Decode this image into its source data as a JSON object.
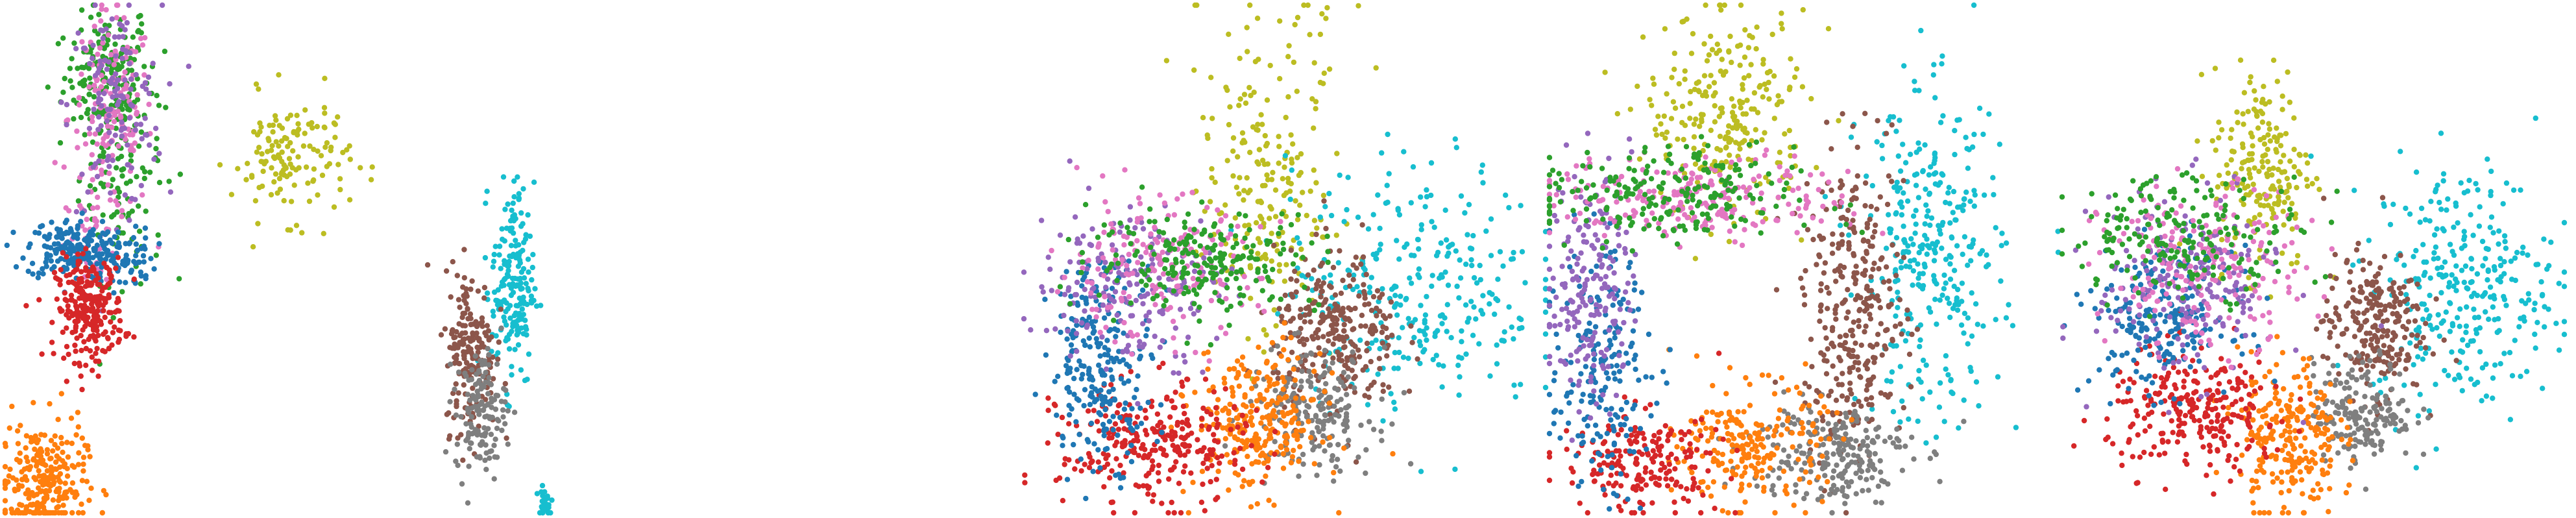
{
  "chart_data": [
    {
      "type": "scatter",
      "panel": 1,
      "title": "",
      "xlabel": "",
      "ylabel": "",
      "grid": false,
      "axes_visible": false,
      "legend": "none",
      "series": [
        {
          "color": "#2ca02c",
          "clusters": [
            {
              "cx": 0.48,
              "cy": 0.86,
              "sx": 0.1,
              "sy": 0.06,
              "n": 160
            },
            {
              "cx": 0.55,
              "cy": 0.7,
              "sx": 0.1,
              "sy": 0.12,
              "n": 140
            }
          ]
        },
        {
          "color": "#e377c2",
          "clusters": [
            {
              "cx": 0.5,
              "cy": 0.78,
              "sx": 0.1,
              "sy": 0.1,
              "n": 150
            },
            {
              "cx": 0.43,
              "cy": 0.55,
              "sx": 0.05,
              "sy": 0.05,
              "n": 40
            }
          ]
        },
        {
          "color": "#9467bd",
          "clusters": [
            {
              "cx": 0.52,
              "cy": 0.8,
              "sx": 0.11,
              "sy": 0.1,
              "n": 130
            }
          ]
        },
        {
          "color": "#1f77b4",
          "clusters": [
            {
              "cx": 0.3,
              "cy": 0.52,
              "sx": 0.1,
              "sy": 0.03,
              "n": 170
            },
            {
              "cx": 0.55,
              "cy": 0.5,
              "sx": 0.08,
              "sy": 0.03,
              "n": 80
            }
          ]
        },
        {
          "color": "#d62728",
          "clusters": [
            {
              "cx": 0.4,
              "cy": 0.4,
              "sx": 0.08,
              "sy": 0.05,
              "n": 260
            }
          ]
        },
        {
          "color": "#bcbd22",
          "clusters": [
            {
              "cx": 1.35,
              "cy": 0.7,
              "sx": 0.14,
              "sy": 0.06,
              "n": 140
            }
          ]
        },
        {
          "color": "#ff7f0e",
          "clusters": [
            {
              "cx": 0.18,
              "cy": 0.06,
              "sx": 0.1,
              "sy": 0.06,
              "n": 260
            }
          ]
        },
        {
          "color": "#17becf",
          "clusters": [
            {
              "cx": 2.4,
              "cy": 0.45,
              "sx": 0.05,
              "sy": 0.1,
              "n": 190
            },
            {
              "cx": 2.55,
              "cy": 0.02,
              "sx": 0.02,
              "sy": 0.02,
              "n": 25
            }
          ]
        },
        {
          "color": "#8c564b",
          "clusters": [
            {
              "cx": 2.2,
              "cy": 0.32,
              "sx": 0.06,
              "sy": 0.08,
              "n": 180
            }
          ]
        },
        {
          "color": "#7f7f7f",
          "clusters": [
            {
              "cx": 2.25,
              "cy": 0.2,
              "sx": 0.06,
              "sy": 0.06,
              "n": 140
            }
          ]
        }
      ]
    },
    {
      "type": "scatter",
      "panel": 2,
      "title": "",
      "xlabel": "",
      "ylabel": "",
      "grid": false,
      "axes_visible": false,
      "legend": "none",
      "series": [
        {
          "color": "#bcbd22",
          "clusters": [
            {
              "cx": 0.45,
              "cy": 0.62,
              "sx": 0.06,
              "sy": 0.12,
              "n": 180
            },
            {
              "cx": 0.5,
              "cy": 0.9,
              "sx": 0.1,
              "sy": 0.08,
              "n": 40
            }
          ]
        },
        {
          "color": "#17becf",
          "clusters": [
            {
              "cx": 0.75,
              "cy": 0.45,
              "sx": 0.12,
              "sy": 0.12,
              "n": 300
            }
          ]
        },
        {
          "color": "#8c564b",
          "clusters": [
            {
              "cx": 0.6,
              "cy": 0.35,
              "sx": 0.06,
              "sy": 0.08,
              "n": 280
            }
          ]
        },
        {
          "color": "#7f7f7f",
          "clusters": [
            {
              "cx": 0.55,
              "cy": 0.2,
              "sx": 0.06,
              "sy": 0.06,
              "n": 200
            }
          ]
        },
        {
          "color": "#ff7f0e",
          "clusters": [
            {
              "cx": 0.45,
              "cy": 0.18,
              "sx": 0.06,
              "sy": 0.07,
              "n": 260
            }
          ]
        },
        {
          "color": "#d62728",
          "clusters": [
            {
              "cx": 0.25,
              "cy": 0.13,
              "sx": 0.09,
              "sy": 0.06,
              "n": 280
            }
          ]
        },
        {
          "color": "#1f77b4",
          "clusters": [
            {
              "cx": 0.15,
              "cy": 0.3,
              "sx": 0.05,
              "sy": 0.1,
              "n": 240
            }
          ]
        },
        {
          "color": "#9467bd",
          "clusters": [
            {
              "cx": 0.2,
              "cy": 0.45,
              "sx": 0.09,
              "sy": 0.08,
              "n": 200
            }
          ]
        },
        {
          "color": "#e377c2",
          "clusters": [
            {
              "cx": 0.25,
              "cy": 0.48,
              "sx": 0.1,
              "sy": 0.07,
              "n": 180
            }
          ]
        },
        {
          "color": "#2ca02c",
          "clusters": [
            {
              "cx": 0.35,
              "cy": 0.5,
              "sx": 0.11,
              "sy": 0.05,
              "n": 220
            }
          ]
        }
      ]
    },
    {
      "type": "scatter",
      "panel": 3,
      "title": "",
      "xlabel": "",
      "ylabel": "",
      "grid": false,
      "axes_visible": false,
      "legend": "none",
      "series": [
        {
          "color": "#bcbd22",
          "clusters": [
            {
              "cx": 0.35,
              "cy": 0.78,
              "sx": 0.08,
              "sy": 0.1,
              "n": 260
            }
          ]
        },
        {
          "color": "#17becf",
          "clusters": [
            {
              "cx": 0.75,
              "cy": 0.5,
              "sx": 0.07,
              "sy": 0.16,
              "n": 320
            }
          ]
        },
        {
          "color": "#8c564b",
          "clusters": [
            {
              "cx": 0.6,
              "cy": 0.4,
              "sx": 0.05,
              "sy": 0.15,
              "n": 320
            }
          ]
        },
        {
          "color": "#7f7f7f",
          "clusters": [
            {
              "cx": 0.55,
              "cy": 0.12,
              "sx": 0.08,
              "sy": 0.05,
              "n": 220
            }
          ]
        },
        {
          "color": "#ff7f0e",
          "clusters": [
            {
              "cx": 0.4,
              "cy": 0.13,
              "sx": 0.07,
              "sy": 0.06,
              "n": 220
            }
          ]
        },
        {
          "color": "#d62728",
          "clusters": [
            {
              "cx": 0.18,
              "cy": 0.1,
              "sx": 0.08,
              "sy": 0.05,
              "n": 200
            }
          ]
        },
        {
          "color": "#1f77b4",
          "clusters": [
            {
              "cx": 0.1,
              "cy": 0.28,
              "sx": 0.05,
              "sy": 0.12,
              "n": 200
            }
          ]
        },
        {
          "color": "#9467bd",
          "clusters": [
            {
              "cx": 0.08,
              "cy": 0.45,
              "sx": 0.04,
              "sy": 0.12,
              "n": 200
            }
          ]
        },
        {
          "color": "#e377c2",
          "clusters": [
            {
              "cx": 0.3,
              "cy": 0.62,
              "sx": 0.15,
              "sy": 0.04,
              "n": 220
            }
          ]
        },
        {
          "color": "#2ca02c",
          "clusters": [
            {
              "cx": 0.22,
              "cy": 0.62,
              "sx": 0.13,
              "sy": 0.05,
              "n": 220
            }
          ]
        }
      ]
    },
    {
      "type": "scatter",
      "panel": 4,
      "title": "",
      "xlabel": "",
      "ylabel": "",
      "grid": false,
      "axes_visible": false,
      "legend": "none",
      "series": [
        {
          "color": "#bcbd22",
          "clusters": [
            {
              "cx": 0.4,
              "cy": 0.68,
              "sx": 0.05,
              "sy": 0.1,
              "n": 200
            }
          ]
        },
        {
          "color": "#17becf",
          "clusters": [
            {
              "cx": 0.8,
              "cy": 0.45,
              "sx": 0.09,
              "sy": 0.12,
              "n": 300
            }
          ]
        },
        {
          "color": "#8c564b",
          "clusters": [
            {
              "cx": 0.62,
              "cy": 0.37,
              "sx": 0.05,
              "sy": 0.07,
              "n": 240
            }
          ]
        },
        {
          "color": "#7f7f7f",
          "clusters": [
            {
              "cx": 0.6,
              "cy": 0.2,
              "sx": 0.05,
              "sy": 0.05,
              "n": 180
            }
          ]
        },
        {
          "color": "#ff7f0e",
          "clusters": [
            {
              "cx": 0.45,
              "cy": 0.15,
              "sx": 0.05,
              "sy": 0.08,
              "n": 240
            }
          ]
        },
        {
          "color": "#d62728",
          "clusters": [
            {
              "cx": 0.27,
              "cy": 0.2,
              "sx": 0.09,
              "sy": 0.06,
              "n": 260
            }
          ]
        },
        {
          "color": "#1f77b4",
          "clusters": [
            {
              "cx": 0.2,
              "cy": 0.38,
              "sx": 0.07,
              "sy": 0.07,
              "n": 220
            }
          ]
        },
        {
          "color": "#9467bd",
          "clusters": [
            {
              "cx": 0.25,
              "cy": 0.45,
              "sx": 0.09,
              "sy": 0.09,
              "n": 200
            }
          ]
        },
        {
          "color": "#e377c2",
          "clusters": [
            {
              "cx": 0.28,
              "cy": 0.48,
              "sx": 0.1,
              "sy": 0.08,
              "n": 200
            }
          ]
        },
        {
          "color": "#2ca02c",
          "clusters": [
            {
              "cx": 0.25,
              "cy": 0.55,
              "sx": 0.12,
              "sy": 0.06,
              "n": 200
            }
          ]
        }
      ]
    }
  ]
}
